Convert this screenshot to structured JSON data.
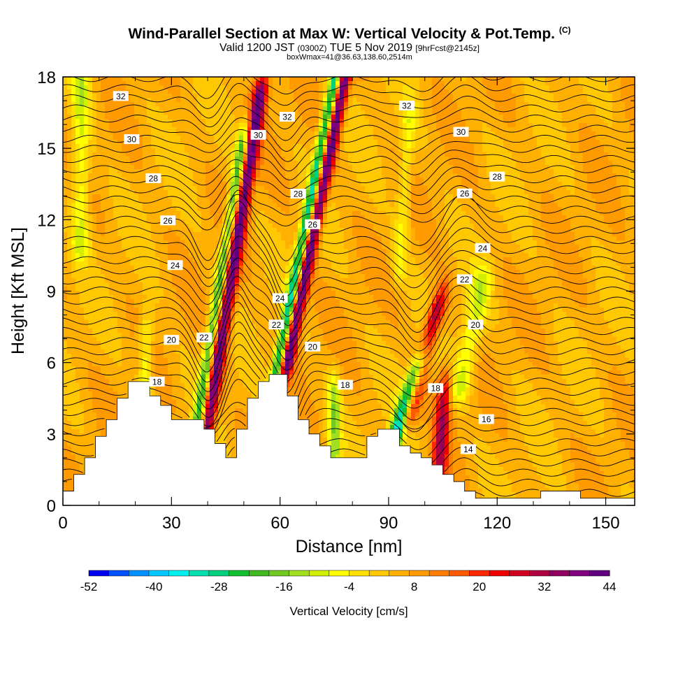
{
  "header": {
    "title_main": "Wind-Parallel Section at Max W: Vertical Velocity & Pot.Temp.",
    "title_mark": "(C)",
    "valid_prefix": "Valid 1200 JST",
    "valid_utc": "(0300Z)",
    "valid_date": "TUE 5 Nov 2019",
    "forecast": "[9hrFcst@2145z]",
    "boxinfo": "boxWmax=41@36.63,138.60,2514m"
  },
  "chart_data": {
    "type": "heatmap",
    "xlabel": "Distance [nm]",
    "ylabel": "Height [Kft MSL]",
    "xlim": [
      0,
      158
    ],
    "ylim": [
      0,
      18
    ],
    "x_ticks": [
      0,
      30,
      60,
      90,
      120,
      150
    ],
    "y_ticks": [
      0,
      3,
      6,
      9,
      12,
      15,
      18
    ],
    "colorbar": {
      "title": "Vertical Velocity [cm/s]",
      "tick_labels": [
        "-52",
        "-40",
        "-28",
        "-16",
        "-4",
        "8",
        "20",
        "32",
        "44"
      ],
      "colors": [
        "#0000f0",
        "#0050ff",
        "#0090ff",
        "#00c8ff",
        "#00f0f0",
        "#00e0b0",
        "#00d080",
        "#10c030",
        "#40b820",
        "#70c820",
        "#a0e020",
        "#d0f000",
        "#ffff00",
        "#ffe000",
        "#ffc800",
        "#ffb000",
        "#ff9a00",
        "#ff7d00",
        "#ff5a00",
        "#ff2800",
        "#f00000",
        "#d00020",
        "#b00040",
        "#900060",
        "#800080",
        "#600080"
      ]
    },
    "terrain": [
      [
        0,
        0.6
      ],
      [
        3,
        0.6
      ],
      [
        3,
        1.3
      ],
      [
        6,
        1.3
      ],
      [
        6,
        2.0
      ],
      [
        9,
        2.0
      ],
      [
        9,
        2.9
      ],
      [
        12,
        2.9
      ],
      [
        12,
        3.6
      ],
      [
        15,
        3.6
      ],
      [
        15,
        4.5
      ],
      [
        18,
        4.5
      ],
      [
        18,
        5.2
      ],
      [
        24,
        5.2
      ],
      [
        24,
        4.6
      ],
      [
        27,
        4.6
      ],
      [
        27,
        4.2
      ],
      [
        30,
        4.2
      ],
      [
        30,
        3.6
      ],
      [
        39,
        3.6
      ],
      [
        39,
        3.2
      ],
      [
        42,
        3.2
      ],
      [
        42,
        2.6
      ],
      [
        45,
        2.6
      ],
      [
        45,
        2.0
      ],
      [
        48,
        2.0
      ],
      [
        48,
        3.2
      ],
      [
        51,
        3.2
      ],
      [
        51,
        4.5
      ],
      [
        54,
        4.5
      ],
      [
        54,
        5.2
      ],
      [
        57,
        5.2
      ],
      [
        57,
        5.5
      ],
      [
        62,
        5.5
      ],
      [
        62,
        4.6
      ],
      [
        65,
        4.6
      ],
      [
        65,
        3.6
      ],
      [
        68,
        3.6
      ],
      [
        68,
        3.0
      ],
      [
        71,
        3.0
      ],
      [
        71,
        2.5
      ],
      [
        74,
        2.5
      ],
      [
        74,
        2.0
      ],
      [
        78,
        2.0
      ],
      [
        78,
        2.0
      ],
      [
        84,
        2.0
      ],
      [
        84,
        2.9
      ],
      [
        87,
        2.9
      ],
      [
        87,
        3.2
      ],
      [
        93,
        3.2
      ],
      [
        93,
        2.5
      ],
      [
        96,
        2.5
      ],
      [
        96,
        2.2
      ],
      [
        99,
        2.2
      ],
      [
        99,
        2.0
      ],
      [
        102,
        2.0
      ],
      [
        102,
        1.7
      ],
      [
        105,
        1.7
      ],
      [
        105,
        1.3
      ],
      [
        108,
        1.3
      ],
      [
        108,
        1.0
      ],
      [
        111,
        1.0
      ],
      [
        111,
        0.6
      ],
      [
        114,
        0.6
      ],
      [
        114,
        0.3
      ],
      [
        132,
        0.3
      ],
      [
        132,
        0.6
      ],
      [
        143,
        0.6
      ],
      [
        143,
        0.3
      ],
      [
        158,
        0.3
      ]
    ],
    "velocity_features": [
      {
        "x": 40,
        "x_slope": 0.12,
        "y": [
          3.5,
          17
        ],
        "amp": 40,
        "width": 2.0
      },
      {
        "x": 37,
        "x_slope": 0.12,
        "y": [
          3.0,
          15
        ],
        "amp": -30,
        "width": 1.7
      },
      {
        "x": 62,
        "x_slope": 0.15,
        "y": [
          6,
          18
        ],
        "amp": 42,
        "width": 1.8
      },
      {
        "x": 59,
        "x_slope": 0.15,
        "y": [
          5.5,
          18
        ],
        "amp": -38,
        "width": 1.6
      },
      {
        "x": 96,
        "x_slope": 0.2,
        "y": [
          4,
          8
        ],
        "amp": 30,
        "width": 2.2
      },
      {
        "x": 91,
        "x_slope": 0.25,
        "y": [
          2.5,
          5.5
        ],
        "amp": -44,
        "width": 2.2
      },
      {
        "x": 104,
        "x_slope": 0.05,
        "y": [
          1.5,
          4.5
        ],
        "amp": 25,
        "width": 2.0
      },
      {
        "x": 110,
        "x_slope": 0.15,
        "y": [
          5,
          9
        ],
        "amp": -14,
        "width": 3.0
      },
      {
        "x": 93,
        "x_slope": 0.05,
        "y": [
          10,
          16
        ],
        "amp": -10,
        "width": 2.0
      },
      {
        "x": 5,
        "x_slope": 0.0,
        "y": [
          11,
          18
        ],
        "amp": -14,
        "width": 2.5
      },
      {
        "x": 75,
        "x_slope": 0.0,
        "y": [
          2,
          4.5
        ],
        "amp": -18,
        "width": 1.8
      },
      {
        "x": 23,
        "x_slope": 0.0,
        "y": [
          4.5,
          7
        ],
        "amp": -14,
        "width": 2.0
      }
    ],
    "theta_contours": [
      {
        "value": 14,
        "label_x": 112
      },
      {
        "value": 16,
        "label_x": 117
      },
      {
        "value": 18,
        "label_x": 26
      },
      {
        "value": 18,
        "label_x": 78
      },
      {
        "value": 18,
        "label_x": 103
      },
      {
        "value": 20,
        "label_x": 30
      },
      {
        "value": 20,
        "label_x": 69
      },
      {
        "value": 20,
        "label_x": 114
      },
      {
        "value": 22,
        "label_x": 39
      },
      {
        "value": 22,
        "label_x": 59
      },
      {
        "value": 22,
        "label_x": 111
      },
      {
        "value": 24,
        "label_x": 31
      },
      {
        "value": 24,
        "label_x": 60
      },
      {
        "value": 24,
        "label_x": 116
      },
      {
        "value": 26,
        "label_x": 29
      },
      {
        "value": 26,
        "label_x": 69
      },
      {
        "value": 26,
        "label_x": 111
      },
      {
        "value": 28,
        "label_x": 25
      },
      {
        "value": 28,
        "label_x": 65
      },
      {
        "value": 28,
        "label_x": 120
      },
      {
        "value": 30,
        "label_x": 19
      },
      {
        "value": 30,
        "label_x": 54
      },
      {
        "value": 30,
        "label_x": 110
      },
      {
        "value": 32,
        "label_x": 16
      },
      {
        "value": 32,
        "label_x": 62
      },
      {
        "value": 32,
        "label_x": 95
      }
    ],
    "contour_labels": [
      "14",
      "16",
      "18",
      "18",
      "18",
      "20",
      "20",
      "20",
      "22",
      "22",
      "22",
      "24",
      "24",
      "24",
      "26",
      "26",
      "26",
      "28",
      "28",
      "28",
      "30",
      "30",
      "30",
      "32",
      "32",
      "32"
    ]
  }
}
